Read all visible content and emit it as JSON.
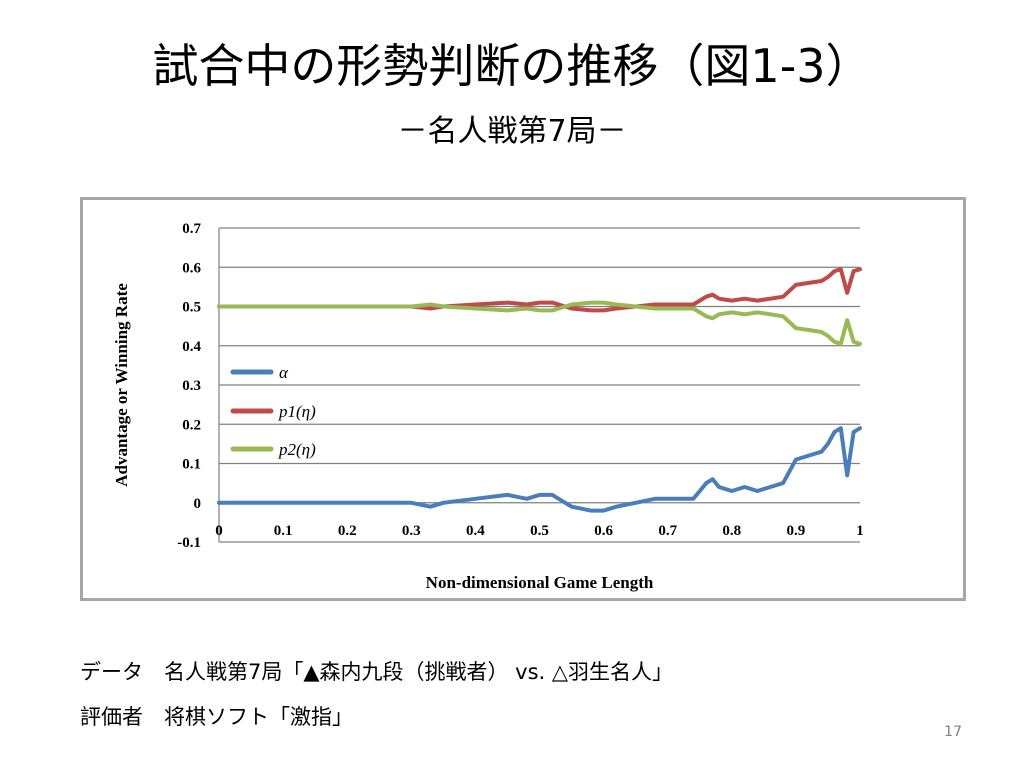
{
  "slide": {
    "title": "試合中の形勢判断の推移（図1-3）",
    "subtitle": "－名人戦第7局－",
    "caption_line1": "データ　名人戦第7局「▲森内九段（挑戦者） vs. △羽生名人」",
    "caption_line2": "評価者　将棋ソフト「激指」",
    "page_number": "17"
  },
  "colors": {
    "alpha": "#4a7ebb",
    "p1": "#be4b48",
    "p2": "#98b954",
    "grid": "#808080",
    "frame": "#a6a6a6"
  },
  "chart_data": {
    "type": "line",
    "title": "",
    "xlabel": "Non-dimensional Game Length",
    "ylabel": "Advantage or Winning Rate",
    "xlim": [
      0,
      1
    ],
    "ylim": [
      -0.1,
      0.7
    ],
    "x_ticks": [
      "0",
      "0.1",
      "0.2",
      "0.3",
      "0.4",
      "0.5",
      "0.6",
      "0.7",
      "0.8",
      "0.9",
      "1"
    ],
    "y_ticks": [
      "-0.1",
      "0",
      "0.1",
      "0.2",
      "0.3",
      "0.4",
      "0.5",
      "0.6",
      "0.7"
    ],
    "grid": "horizontal",
    "legend_position": "left",
    "x": [
      0,
      0.1,
      0.2,
      0.28,
      0.3,
      0.33,
      0.35,
      0.4,
      0.45,
      0.48,
      0.5,
      0.52,
      0.53,
      0.55,
      0.58,
      0.6,
      0.62,
      0.65,
      0.68,
      0.7,
      0.72,
      0.74,
      0.75,
      0.76,
      0.77,
      0.78,
      0.8,
      0.82,
      0.84,
      0.86,
      0.88,
      0.9,
      0.92,
      0.94,
      0.95,
      0.96,
      0.97,
      0.98,
      0.99,
      1.0
    ],
    "series": [
      {
        "name": "α",
        "values": [
          0,
          0,
          0,
          0,
          0,
          -0.01,
          0,
          0.01,
          0.02,
          0.01,
          0.02,
          0.02,
          0.01,
          -0.01,
          -0.02,
          -0.02,
          -0.01,
          0,
          0.01,
          0.01,
          0.01,
          0.01,
          0.03,
          0.05,
          0.06,
          0.04,
          0.03,
          0.04,
          0.03,
          0.04,
          0.05,
          0.11,
          0.12,
          0.13,
          0.15,
          0.18,
          0.19,
          0.07,
          0.18,
          0.19
        ]
      },
      {
        "name": "p1(η)",
        "values": [
          0.5,
          0.5,
          0.5,
          0.5,
          0.5,
          0.495,
          0.5,
          0.505,
          0.51,
          0.505,
          0.51,
          0.51,
          0.505,
          0.495,
          0.49,
          0.49,
          0.495,
          0.5,
          0.505,
          0.505,
          0.505,
          0.505,
          0.515,
          0.525,
          0.53,
          0.52,
          0.515,
          0.52,
          0.515,
          0.52,
          0.525,
          0.555,
          0.56,
          0.565,
          0.575,
          0.59,
          0.595,
          0.535,
          0.59,
          0.595
        ]
      },
      {
        "name": "p2(η)",
        "values": [
          0.5,
          0.5,
          0.5,
          0.5,
          0.5,
          0.505,
          0.5,
          0.495,
          0.49,
          0.495,
          0.49,
          0.49,
          0.495,
          0.505,
          0.51,
          0.51,
          0.505,
          0.5,
          0.495,
          0.495,
          0.495,
          0.495,
          0.485,
          0.475,
          0.47,
          0.48,
          0.485,
          0.48,
          0.485,
          0.48,
          0.475,
          0.445,
          0.44,
          0.435,
          0.425,
          0.41,
          0.405,
          0.465,
          0.41,
          0.405
        ]
      }
    ]
  }
}
